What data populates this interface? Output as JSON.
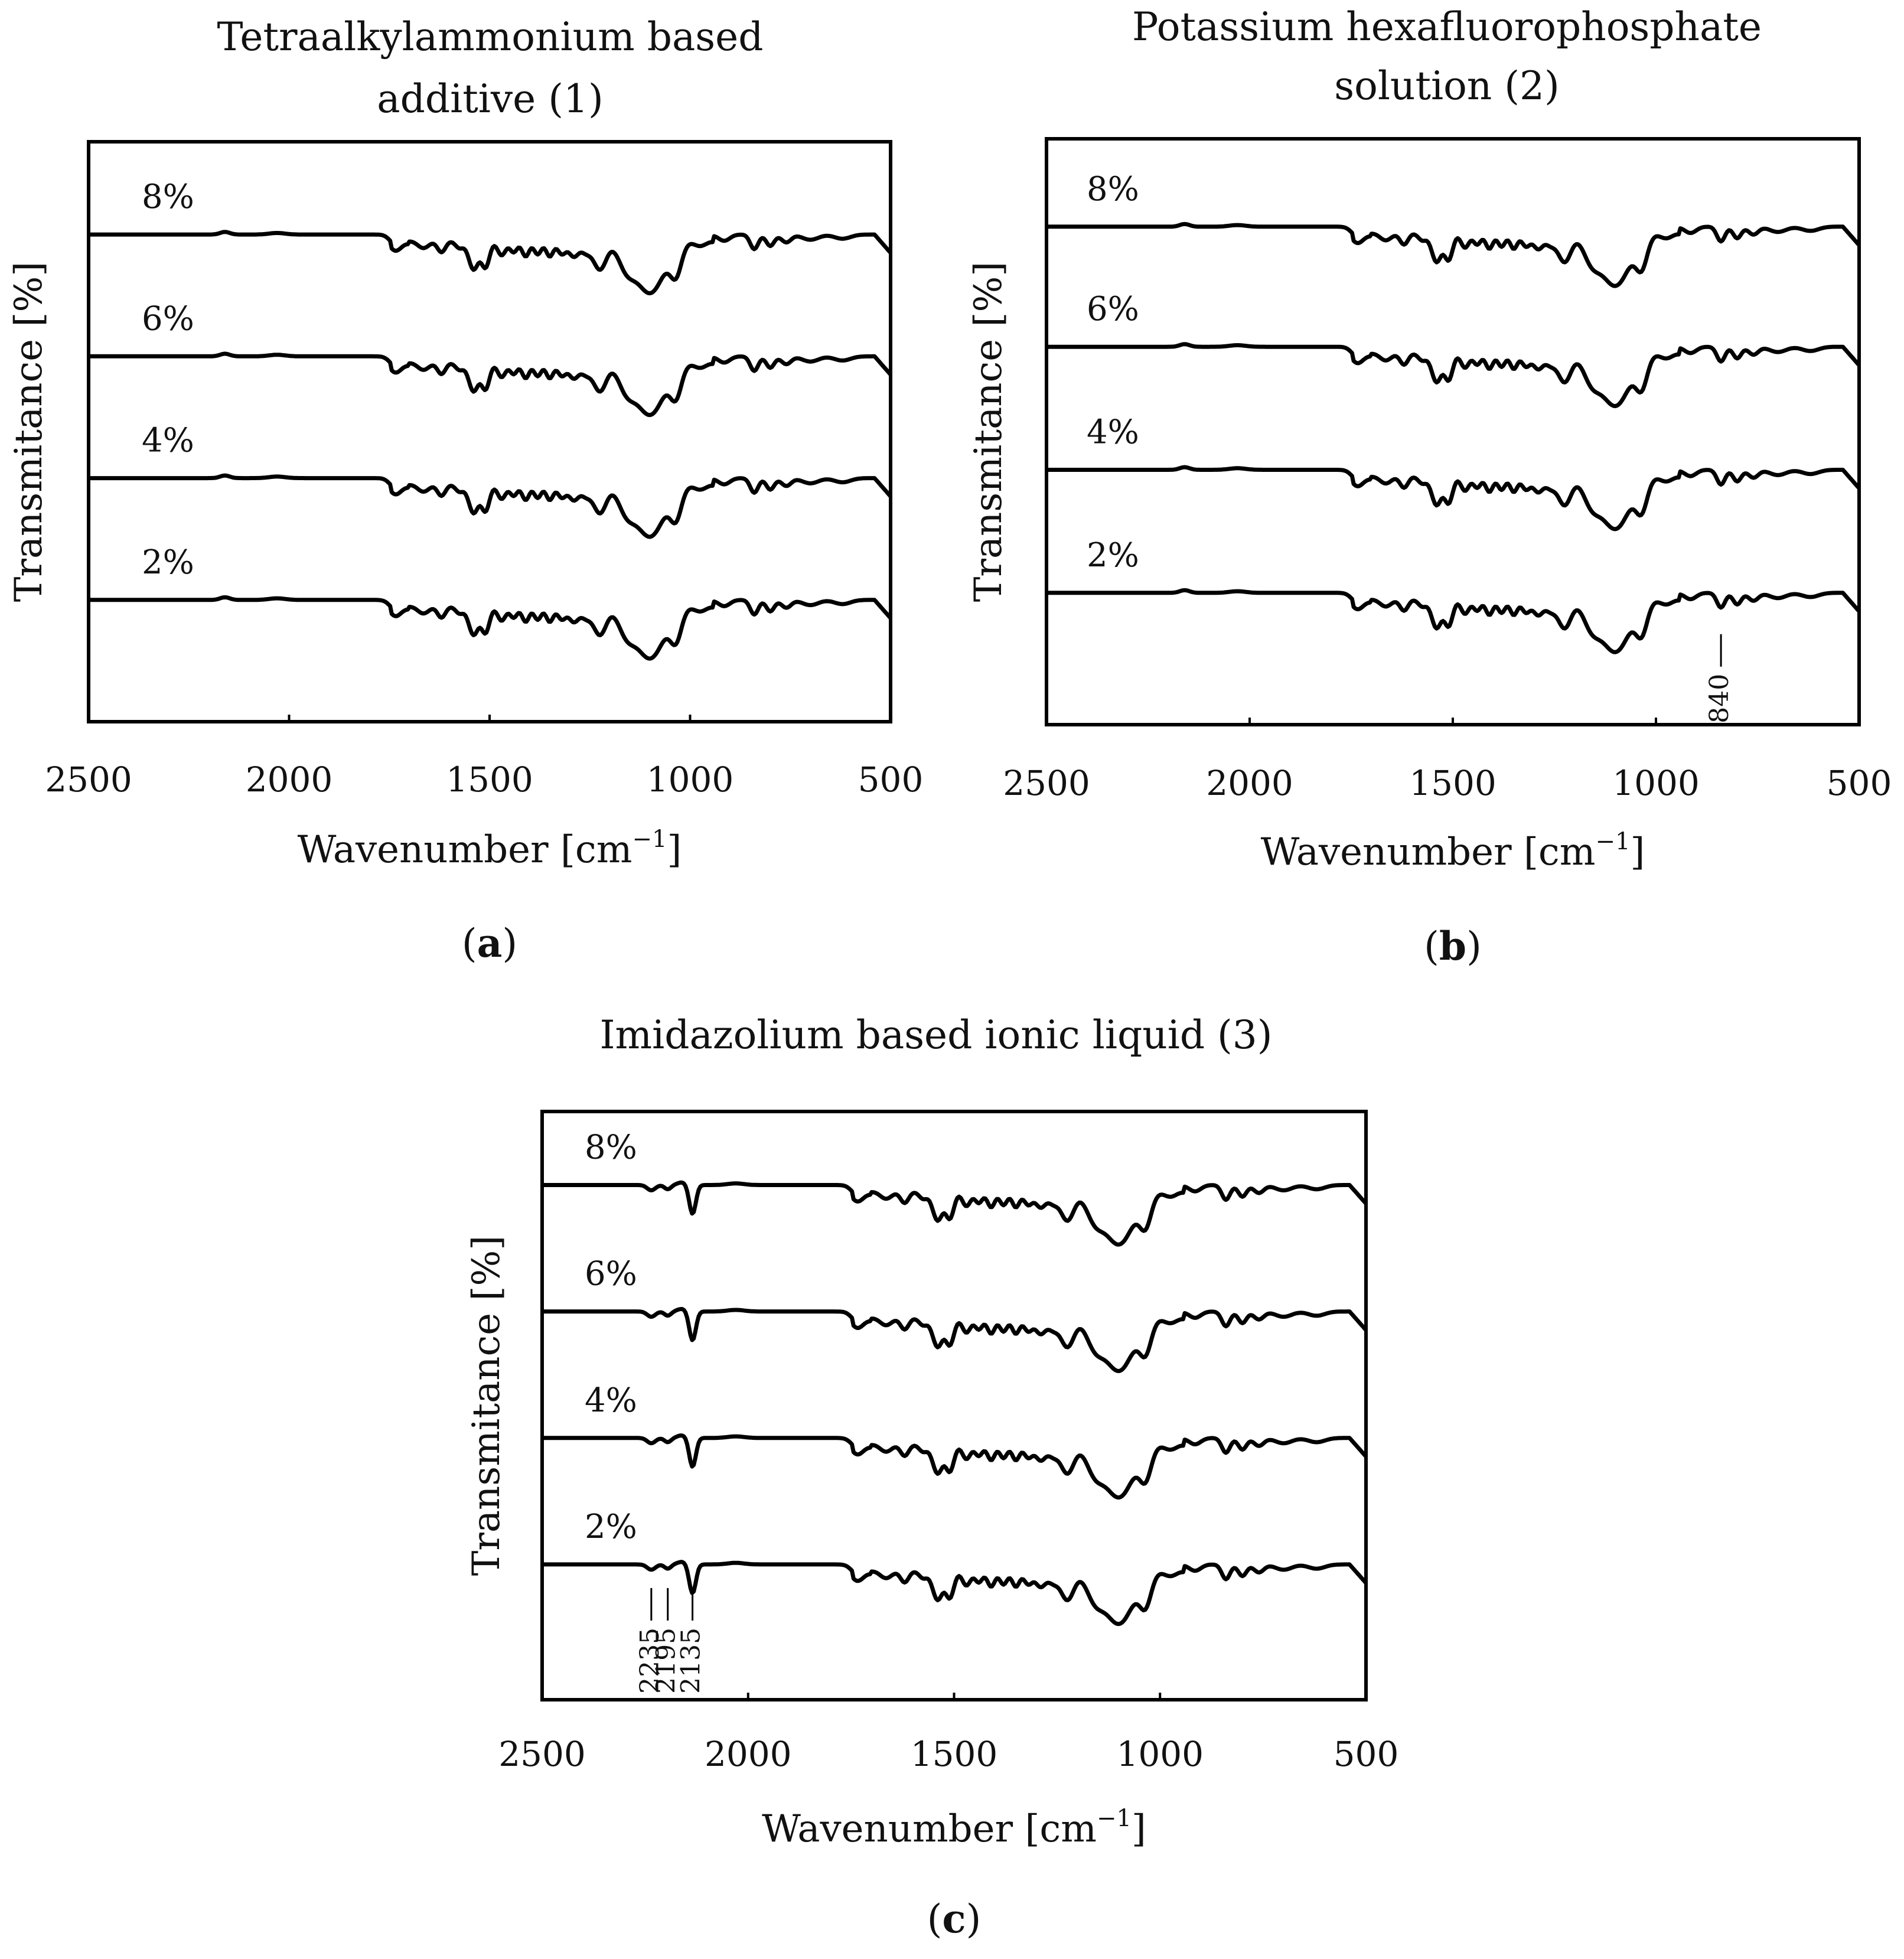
{
  "chart_data": [
    {
      "type": "line",
      "panel_label": "a",
      "title_lines": [
        "Tetraalkylammonium based",
        "additive (1)"
      ],
      "xlabel": "Wavenumber [cm",
      "xlabel_sup": "−1",
      "xlabel_close": "]",
      "ylabel": "Transmitance [%]",
      "xlim": [
        2500,
        500
      ],
      "xticks": [
        "2500",
        "2000",
        "1500",
        "1000",
        "500"
      ],
      "series": [
        {
          "name": "8%",
          "baseline": 0.84
        },
        {
          "name": "6%",
          "baseline": 0.63
        },
        {
          "name": "4%",
          "baseline": 0.42
        },
        {
          "name": "2%",
          "baseline": 0.21
        }
      ],
      "annotations": []
    },
    {
      "type": "line",
      "panel_label": "b",
      "title_lines": [
        "Potassium hexafluorophosphate",
        "solution (2)"
      ],
      "xlabel": "Wavenumber [cm",
      "xlabel_sup": "−1",
      "xlabel_close": "]",
      "ylabel": "Transmitance [%]",
      "xlim": [
        2500,
        500
      ],
      "xticks": [
        "2500",
        "2000",
        "1500",
        "1000",
        "500"
      ],
      "series": [
        {
          "name": "8%",
          "baseline": 0.85
        },
        {
          "name": "6%",
          "baseline": 0.645
        },
        {
          "name": "4%",
          "baseline": 0.435
        },
        {
          "name": "2%",
          "baseline": 0.225
        }
      ],
      "annotations": [
        {
          "text": "840",
          "x": 840
        }
      ]
    },
    {
      "type": "line",
      "panel_label": "c",
      "title_lines": [
        "Imidazolium based ionic liquid (3)"
      ],
      "xlabel": "Wavenumber [cm",
      "xlabel_sup": "−1",
      "xlabel_close": "]",
      "ylabel": "Transmitance [%]",
      "xlim": [
        2500,
        500
      ],
      "xticks": [
        "2500",
        "2000",
        "1500",
        "1000",
        "500"
      ],
      "series": [
        {
          "name": "8%",
          "baseline": 0.875
        },
        {
          "name": "6%",
          "baseline": 0.66
        },
        {
          "name": "4%",
          "baseline": 0.445
        },
        {
          "name": "2%",
          "baseline": 0.23
        }
      ],
      "annotations": [
        {
          "text": "2235",
          "x": 2235
        },
        {
          "text": "2195",
          "x": 2195
        },
        {
          "text": "2135",
          "x": 2135
        }
      ]
    }
  ]
}
